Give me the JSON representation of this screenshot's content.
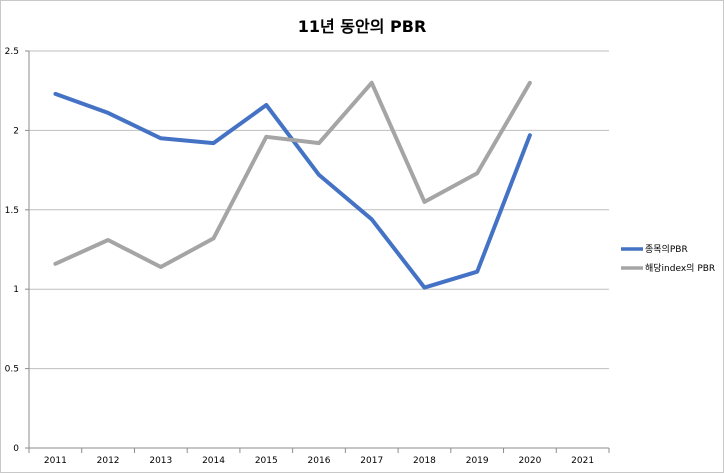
{
  "chart_data": {
    "type": "line",
    "title": "11년 동안의 PBR",
    "xlabel": "",
    "ylabel": "",
    "categories": [
      "2011",
      "2012",
      "2013",
      "2014",
      "2015",
      "2016",
      "2017",
      "2018",
      "2019",
      "2020",
      "2021"
    ],
    "ylim": [
      0,
      2.5
    ],
    "yticks": [
      "0",
      "0.5",
      "1",
      "1.5",
      "2",
      "2.5"
    ],
    "grid": true,
    "legend_position": "right",
    "series": [
      {
        "name": "종목의PBR",
        "color": "#4472c4",
        "values": [
          2.23,
          2.11,
          1.95,
          1.92,
          2.16,
          1.72,
          1.44,
          1.01,
          1.11,
          1.97,
          null
        ]
      },
      {
        "name": "해당index의 PBR",
        "color": "#a5a5a5",
        "values": [
          1.16,
          1.31,
          1.14,
          1.32,
          1.96,
          1.92,
          2.3,
          1.55,
          1.73,
          2.3,
          null
        ]
      }
    ]
  }
}
